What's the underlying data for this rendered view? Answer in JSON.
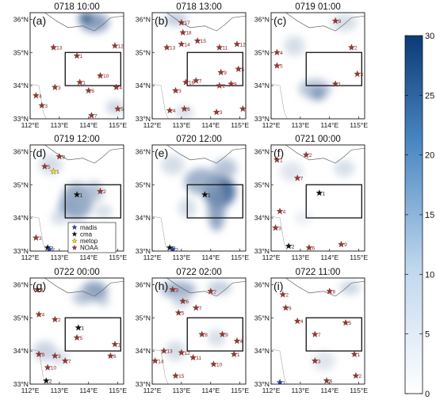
{
  "chart_data": {
    "type": "scatter",
    "colorbar": {
      "min": 0,
      "max": 30,
      "ticks": [
        "0",
        "5",
        "10",
        "15",
        "20",
        "25",
        "30"
      ],
      "colors": [
        "#ffffff",
        "#0b3a78"
      ]
    },
    "x_ticks": [
      "112°E",
      "113°E",
      "114°E",
      "115°E"
    ],
    "y_ticks": [
      "33°N",
      "34°N",
      "35°N",
      "36°N"
    ],
    "xlim": [
      112,
      115.2
    ],
    "ylim": [
      33,
      36.2
    ],
    "box": {
      "lon": [
        113.2,
        115.1
      ],
      "lat": [
        34.0,
        35.0
      ]
    },
    "legend": [
      {
        "name": "madis",
        "color": "#1f3fbf"
      },
      {
        "name": "cma",
        "color": "#111111"
      },
      {
        "name": "metop",
        "color": "#f2e200"
      },
      {
        "name": "NOAA",
        "color": "#a4322a"
      }
    ],
    "panels": [
      {
        "label": "(a)",
        "title": "0718 10:00",
        "blobs": [
          [
            114.2,
            35.9,
            0.5,
            0.3,
            0.55
          ],
          [
            113.9,
            36.05,
            0.25,
            0.15,
            0.9
          ],
          [
            114.9,
            33.35,
            0.3,
            0.2,
            0.25
          ]
        ],
        "points": [
          [
            112.2,
            33.7,
            "NOAA",
            "4"
          ],
          [
            112.4,
            33.4,
            "NOAA",
            "3"
          ],
          [
            112.8,
            35.15,
            "NOAA",
            "13"
          ],
          [
            113.6,
            34.9,
            "NOAA",
            "1"
          ],
          [
            112.85,
            33.95,
            "NOAA",
            "3"
          ],
          [
            113.7,
            34.1,
            "NOAA",
            "1"
          ],
          [
            114.4,
            34.3,
            "NOAA",
            "10"
          ],
          [
            114.9,
            35.2,
            "NOAA",
            "12"
          ],
          [
            114.0,
            33.85,
            "NOAA",
            "6"
          ],
          [
            114.1,
            33.1,
            "NOAA",
            "7"
          ],
          [
            115.0,
            33.3,
            "NOAA",
            "5"
          ],
          [
            114.95,
            33.95,
            "NOAA",
            "4"
          ]
        ]
      },
      {
        "label": "(b)",
        "title": "0718 13:00",
        "blobs": [
          [
            112.8,
            36.0,
            0.4,
            0.2,
            0.3
          ],
          [
            113.1,
            33.2,
            0.3,
            0.2,
            0.2
          ]
        ],
        "points": [
          [
            113.0,
            35.9,
            "NOAA",
            "17"
          ],
          [
            113.05,
            35.6,
            "NOAA",
            "18"
          ],
          [
            112.5,
            35.15,
            "NOAA",
            "13"
          ],
          [
            113.0,
            35.25,
            "NOAA",
            "14"
          ],
          [
            113.55,
            35.35,
            "NOAA",
            "15"
          ],
          [
            114.3,
            35.15,
            "NOAA",
            "11"
          ],
          [
            114.9,
            35.25,
            "NOAA",
            "12"
          ],
          [
            112.8,
            33.85,
            "NOAA",
            "3"
          ],
          [
            113.15,
            34.1,
            "NOAA",
            "16"
          ],
          [
            113.5,
            34.15,
            "NOAA",
            "7"
          ],
          [
            114.35,
            34.4,
            "NOAA",
            "9"
          ],
          [
            114.3,
            34.0,
            "NOAA",
            "2"
          ],
          [
            114.7,
            34.05,
            "NOAA",
            "8"
          ],
          [
            114.95,
            34.5,
            "NOAA",
            "5"
          ],
          [
            112.6,
            33.25,
            "NOAA",
            "4"
          ],
          [
            113.1,
            33.3,
            "NOAA",
            "6"
          ],
          [
            114.2,
            33.2,
            "NOAA",
            "3"
          ],
          [
            115.1,
            33.3,
            "NOAA",
            "10"
          ]
        ]
      },
      {
        "label": "(c)",
        "title": "0719 01:00",
        "blobs": [
          [
            113.5,
            33.9,
            0.55,
            0.3,
            0.35
          ],
          [
            113.6,
            33.75,
            0.25,
            0.2,
            0.55
          ],
          [
            114.5,
            35.9,
            0.45,
            0.25,
            0.2
          ],
          [
            112.8,
            35.2,
            0.35,
            0.3,
            0.2
          ]
        ],
        "points": [
          [
            114.2,
            35.95,
            "NOAA",
            "8"
          ],
          [
            112.2,
            35.0,
            "NOAA",
            "4"
          ],
          [
            112.2,
            34.6,
            "NOAA",
            "5"
          ],
          [
            114.75,
            35.15,
            "NOAA",
            "2"
          ],
          [
            114.2,
            34.05,
            "NOAA",
            "1"
          ],
          [
            114.95,
            34.35,
            "NOAA",
            "3"
          ]
        ]
      },
      {
        "label": "(d)",
        "title": "0719 12:00",
        "blobs": [
          [
            113.6,
            34.5,
            0.55,
            0.55,
            0.5
          ],
          [
            113.3,
            34.3,
            0.35,
            0.3,
            0.45
          ],
          [
            114.2,
            34.8,
            0.3,
            0.3,
            0.35
          ],
          [
            112.7,
            35.6,
            0.4,
            0.3,
            0.2
          ],
          [
            113.0,
            34.0,
            0.3,
            0.2,
            0.2
          ],
          [
            114.5,
            34.2,
            0.3,
            0.2,
            0.2
          ]
        ],
        "points": [
          [
            112.5,
            35.55,
            "NOAA",
            "5"
          ],
          [
            113.0,
            35.85,
            "NOAA",
            "8"
          ],
          [
            112.8,
            35.4,
            "metop",
            "1"
          ],
          [
            113.6,
            34.7,
            "cma",
            "1"
          ],
          [
            114.4,
            34.8,
            "NOAA",
            "2"
          ],
          [
            112.2,
            33.4,
            "NOAA",
            "3"
          ],
          [
            112.6,
            33.1,
            "cma",
            "2"
          ],
          [
            112.65,
            33.05,
            "madis",
            "2"
          ]
        ]
      },
      {
        "label": "(e)",
        "title": "0720 12:00",
        "blobs": [
          [
            114.3,
            34.8,
            0.55,
            0.5,
            0.85
          ],
          [
            114.2,
            34.3,
            0.3,
            0.7,
            0.55
          ],
          [
            113.7,
            35.1,
            0.6,
            0.4,
            0.45
          ],
          [
            114.5,
            35.5,
            0.4,
            0.3,
            0.35
          ],
          [
            112.7,
            35.6,
            0.4,
            0.3,
            0.2
          ],
          [
            113.2,
            34.3,
            0.3,
            0.3,
            0.2
          ]
        ],
        "points": [
          [
            113.8,
            34.7,
            "cma",
            "1"
          ],
          [
            112.6,
            33.1,
            "cma",
            "2"
          ],
          [
            112.7,
            33.05,
            "madis",
            "2"
          ]
        ]
      },
      {
        "label": "(f)",
        "title": "0721 00:00",
        "blobs": [
          [
            114.5,
            35.5,
            0.35,
            0.25,
            0.2
          ],
          [
            112.7,
            35.4,
            0.4,
            0.3,
            0.15
          ],
          [
            113.1,
            34.0,
            0.3,
            0.2,
            0.1
          ]
        ],
        "points": [
          [
            113.2,
            35.9,
            "NOAA",
            "2"
          ],
          [
            112.2,
            35.75,
            "NOAA",
            "1"
          ],
          [
            112.9,
            35.2,
            "NOAA",
            "7"
          ],
          [
            113.65,
            34.75,
            "cma",
            "1"
          ],
          [
            112.3,
            34.2,
            "NOAA",
            "4"
          ],
          [
            112.15,
            33.7,
            "NOAA",
            "3"
          ],
          [
            112.6,
            33.15,
            "cma",
            "2"
          ],
          [
            113.3,
            33.1,
            "NOAA",
            "6"
          ],
          [
            114.4,
            33.2,
            "NOAA",
            "9"
          ]
        ]
      },
      {
        "label": "(g)",
        "title": "0722 00:00",
        "blobs": [
          [
            114.2,
            35.8,
            0.45,
            0.3,
            0.55
          ],
          [
            113.8,
            35.6,
            0.35,
            0.2,
            0.35
          ],
          [
            114.5,
            35.5,
            0.2,
            0.15,
            0.3
          ],
          [
            112.5,
            34.0,
            0.4,
            0.3,
            0.25
          ],
          [
            113.0,
            33.8,
            0.3,
            0.2,
            0.2
          ]
        ],
        "points": [
          [
            112.25,
            35.85,
            "NOAA",
            "8"
          ],
          [
            112.3,
            35.1,
            "NOAA",
            "4"
          ],
          [
            112.85,
            34.95,
            "NOAA",
            "2"
          ],
          [
            113.65,
            34.7,
            "cma",
            "1"
          ],
          [
            113.6,
            34.4,
            "NOAA",
            "5"
          ],
          [
            114.9,
            34.2,
            "NOAA",
            "1"
          ],
          [
            112.3,
            33.9,
            "NOAA",
            "9"
          ],
          [
            112.6,
            33.5,
            "NOAA",
            "10"
          ],
          [
            112.85,
            33.85,
            "NOAA",
            "3"
          ],
          [
            113.2,
            33.7,
            "NOAA",
            "7"
          ],
          [
            114.75,
            33.85,
            "NOAA",
            "6"
          ],
          [
            112.55,
            33.1,
            "cma",
            "2"
          ]
        ]
      },
      {
        "label": "(h)",
        "title": "0722 02:00",
        "blobs": [
          [
            112.9,
            35.85,
            0.6,
            0.25,
            0.45
          ],
          [
            114.3,
            35.9,
            0.4,
            0.2,
            0.3
          ],
          [
            113.0,
            35.5,
            0.3,
            0.2,
            0.25
          ],
          [
            114.2,
            34.4,
            0.3,
            0.25,
            0.2
          ],
          [
            112.8,
            34.0,
            0.35,
            0.3,
            0.2
          ]
        ],
        "points": [
          [
            112.7,
            35.85,
            "NOAA",
            "3"
          ],
          [
            114.0,
            35.8,
            "NOAA",
            "2"
          ],
          [
            113.05,
            35.5,
            "NOAA",
            "6"
          ],
          [
            113.5,
            35.3,
            "NOAA",
            "7"
          ],
          [
            112.9,
            35.15,
            "NOAA",
            "5"
          ],
          [
            113.7,
            34.5,
            "NOAA",
            "8"
          ],
          [
            114.4,
            34.5,
            "NOAA",
            "9"
          ],
          [
            114.9,
            34.3,
            "NOAA",
            "4"
          ],
          [
            112.4,
            34.0,
            "NOAA",
            "13"
          ],
          [
            112.1,
            33.7,
            "NOAA",
            "14"
          ],
          [
            113.0,
            33.95,
            "NOAA",
            "12"
          ],
          [
            113.4,
            33.8,
            "NOAA",
            "11"
          ],
          [
            114.1,
            33.6,
            "NOAA",
            "10"
          ],
          [
            114.8,
            33.9,
            "NOAA",
            "1"
          ],
          [
            112.8,
            33.25,
            "NOAA",
            "15"
          ]
        ]
      },
      {
        "label": "(i)",
        "title": "0722 11:00",
        "blobs": [
          [
            114.7,
            35.9,
            0.35,
            0.2,
            0.25
          ],
          [
            113.8,
            33.7,
            0.4,
            0.3,
            0.15
          ]
        ],
        "points": [
          [
            112.4,
            35.7,
            "NOAA",
            "2"
          ],
          [
            114.0,
            35.8,
            "NOAA",
            "8"
          ],
          [
            112.5,
            35.3,
            "NOAA",
            "9"
          ],
          [
            112.9,
            34.9,
            "NOAA",
            "4"
          ],
          [
            114.55,
            34.85,
            "NOAA",
            "5"
          ],
          [
            113.5,
            34.5,
            "NOAA",
            "7"
          ],
          [
            113.5,
            33.7,
            "NOAA",
            "3"
          ],
          [
            114.85,
            33.9,
            "NOAA",
            "1"
          ],
          [
            114.9,
            33.25,
            "NOAA",
            "2"
          ],
          [
            113.9,
            33.1,
            "NOAA",
            "6"
          ],
          [
            112.3,
            33.05,
            "madis",
            "1"
          ]
        ]
      }
    ]
  }
}
